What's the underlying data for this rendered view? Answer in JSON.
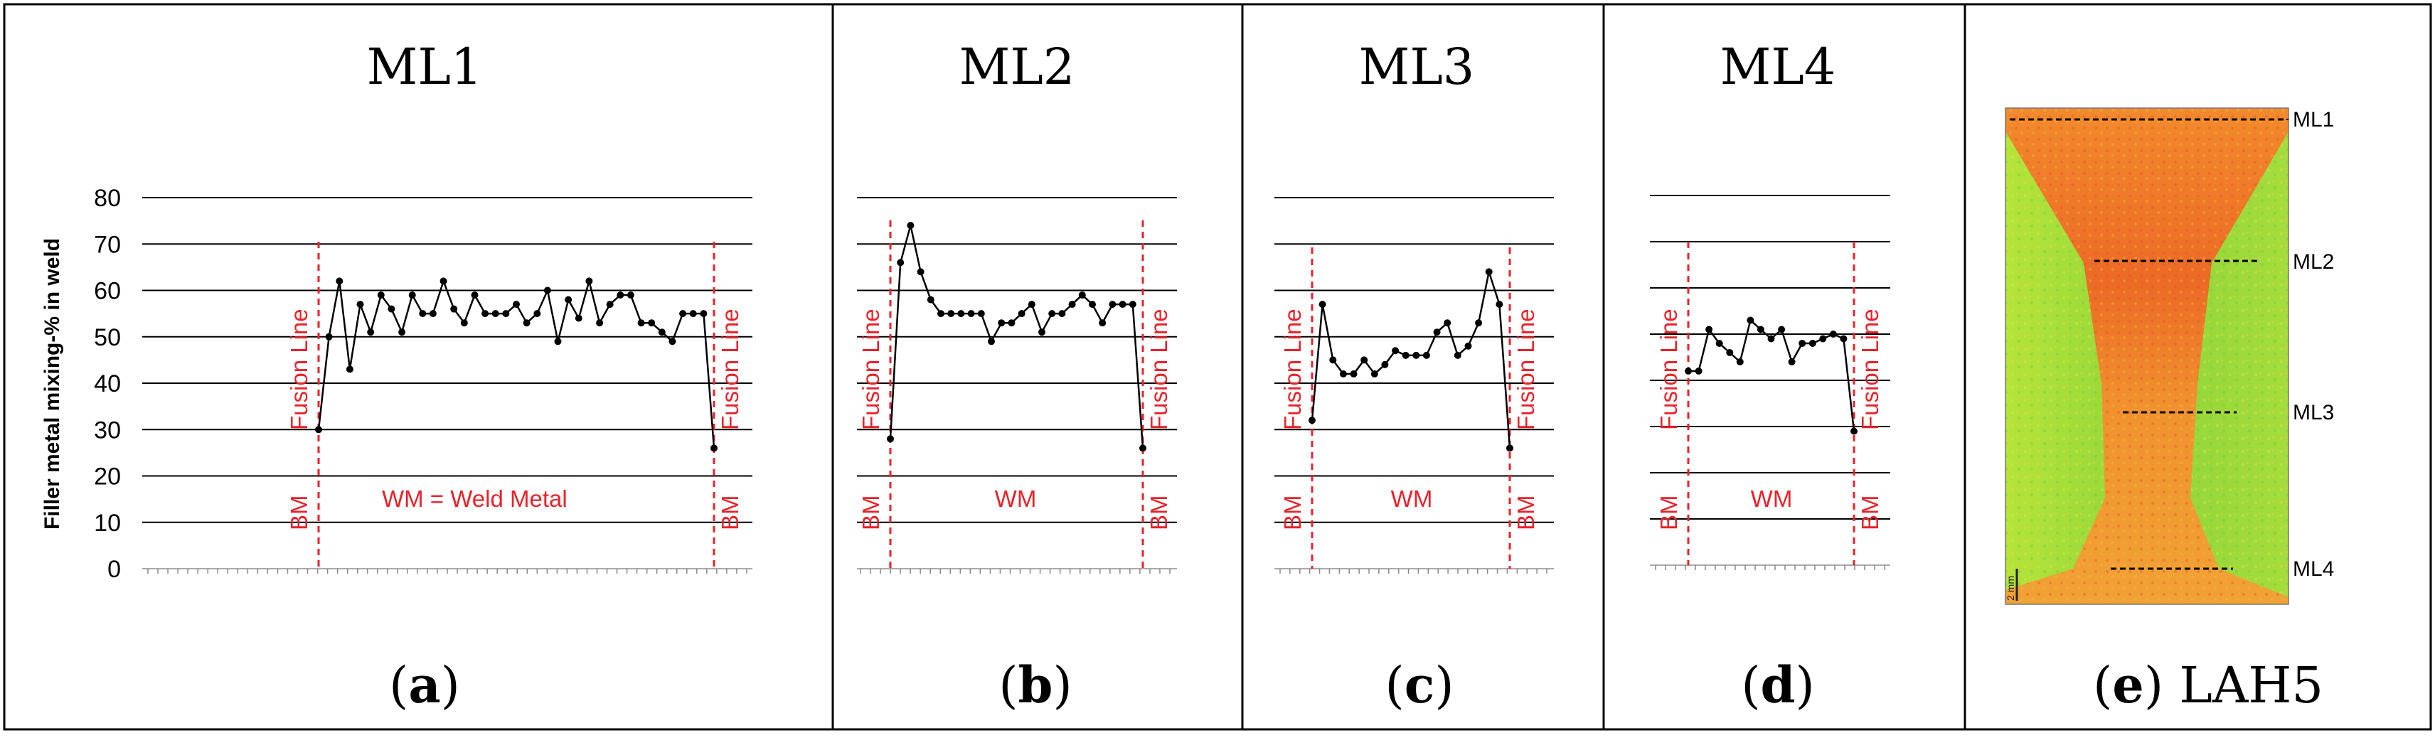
{
  "figure": {
    "ylabel": "Filler metal mixing-% in weld",
    "y_ticks": [
      "0",
      "10",
      "20",
      "30",
      "40",
      "50",
      "60",
      "70",
      "80"
    ],
    "fusion_line_label": "Fusion Line",
    "bm_label": "BM",
    "colors": {
      "series": "#000000",
      "annotation": "#e8222a",
      "grid": "#000000"
    }
  },
  "panels": [
    {
      "title": "ML1",
      "caption_letter": "a",
      "wm_label": "WM = Weld Metal"
    },
    {
      "title": "ML2",
      "caption_letter": "b",
      "wm_label": "WM"
    },
    {
      "title": "ML3",
      "caption_letter": "c",
      "wm_label": "WM"
    },
    {
      "title": "ML4",
      "caption_letter": "d",
      "wm_label": "WM"
    },
    {
      "title": "",
      "caption_letter": "e",
      "caption_suffix": "LAH5"
    }
  ],
  "macro": {
    "scale_bar_label": "2 mm",
    "lines": [
      "ML1",
      "ML2",
      "ML3",
      "ML4"
    ]
  },
  "chart_data": [
    {
      "type": "line",
      "title": "ML1",
      "ylabel": "Filler metal mixing-% in weld",
      "ylim": [
        0,
        80
      ],
      "grid": true,
      "series": [
        {
          "values": [
            30,
            50,
            62,
            43,
            57,
            51,
            59,
            56,
            51,
            59,
            55,
            55,
            62,
            56,
            53,
            59,
            55,
            55,
            55,
            57,
            53,
            55,
            60,
            49,
            58,
            54,
            62,
            53,
            57,
            59,
            59,
            53,
            53,
            51,
            49,
            55,
            55,
            55,
            26
          ]
        }
      ]
    },
    {
      "type": "line",
      "title": "ML2",
      "ylim": [
        0,
        80
      ],
      "grid": true,
      "series": [
        {
          "values": [
            28,
            66,
            74,
            64,
            58,
            55,
            55,
            55,
            55,
            55,
            49,
            53,
            53,
            55,
            57,
            51,
            55,
            55,
            57,
            59,
            57,
            53,
            57,
            57,
            57,
            26
          ]
        }
      ]
    },
    {
      "type": "line",
      "title": "ML3",
      "ylim": [
        0,
        80
      ],
      "grid": true,
      "series": [
        {
          "values": [
            32,
            57,
            45,
            42,
            42,
            45,
            42,
            44,
            47,
            46,
            46,
            46,
            51,
            53,
            46,
            48,
            53,
            64,
            57,
            26
          ]
        }
      ]
    },
    {
      "type": "line",
      "title": "ML4",
      "ylim": [
        0,
        80
      ],
      "grid": true,
      "series": [
        {
          "values": [
            42,
            42,
            51,
            48,
            46,
            44,
            53,
            51,
            49,
            51,
            44,
            48,
            48,
            49,
            50,
            49,
            29
          ]
        }
      ]
    }
  ]
}
